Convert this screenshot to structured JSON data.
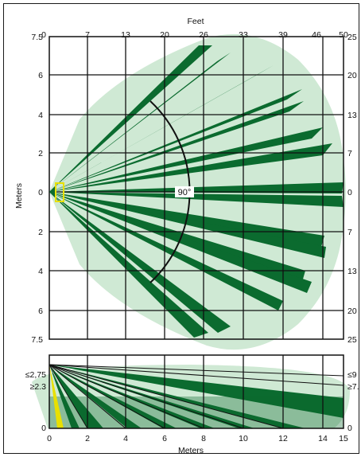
{
  "colors": {
    "coverage_area": "#cfe9d4",
    "zone_beam": "#0b6b2f",
    "detector": "#e8e000",
    "grid": "#111111"
  },
  "top_view": {
    "feet_axis_title": "Feet",
    "feet_ticks": [
      "0",
      "7",
      "13",
      "20",
      "26",
      "33",
      "39",
      "46",
      "50"
    ],
    "meters_axis_title": "Meters",
    "left_meter_ticks": [
      "7.5",
      "6",
      "4",
      "2",
      "0",
      "2",
      "4",
      "6",
      "7.5"
    ],
    "right_feet_ticks": [
      "25",
      "20",
      "13",
      "7",
      "0",
      "7",
      "13",
      "20",
      "25"
    ],
    "angle_label": "90°",
    "bottom_meter_ticks_row": []
  },
  "side_view": {
    "left_height_ticks": [
      "≤2,75",
      "≥2.3",
      "0"
    ],
    "right_height_ticks": [
      "≤9",
      "≥7.",
      "0"
    ],
    "bottom_meter_ticks": [
      "0",
      "2",
      "4",
      "6",
      "8",
      "10",
      "12",
      "14",
      "15"
    ],
    "bottom_axis_title": "Meters"
  }
}
